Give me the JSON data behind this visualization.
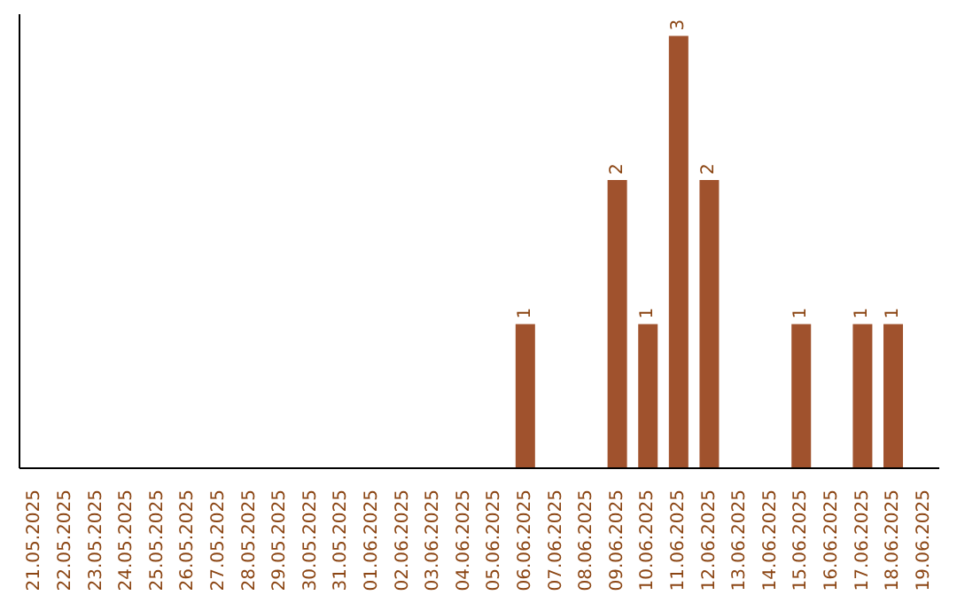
{
  "chart_data": {
    "type": "bar",
    "categories": [
      "21.05.2025",
      "22.05.2025",
      "23.05.2025",
      "24.05.2025",
      "25.05.2025",
      "26.05.2025",
      "27.05.2025",
      "28.05.2025",
      "29.05.2025",
      "30.05.2025",
      "31.05.2025",
      "01.06.2025",
      "02.06.2025",
      "03.06.2025",
      "04.06.2025",
      "05.06.2025",
      "06.06.2025",
      "07.06.2025",
      "08.06.2025",
      "09.06.2025",
      "10.06.2025",
      "11.06.2025",
      "12.06.2025",
      "13.06.2025",
      "14.06.2025",
      "15.06.2025",
      "16.06.2025",
      "17.06.2025",
      "18.06.2025",
      "19.06.2025"
    ],
    "values": [
      null,
      null,
      null,
      null,
      null,
      null,
      null,
      null,
      null,
      null,
      null,
      null,
      null,
      null,
      null,
      null,
      1,
      null,
      null,
      2,
      1,
      3,
      2,
      null,
      null,
      1,
      null,
      1,
      1,
      null
    ],
    "color": "#a0522d",
    "data_labels": true,
    "tick_labels": "x"
  }
}
